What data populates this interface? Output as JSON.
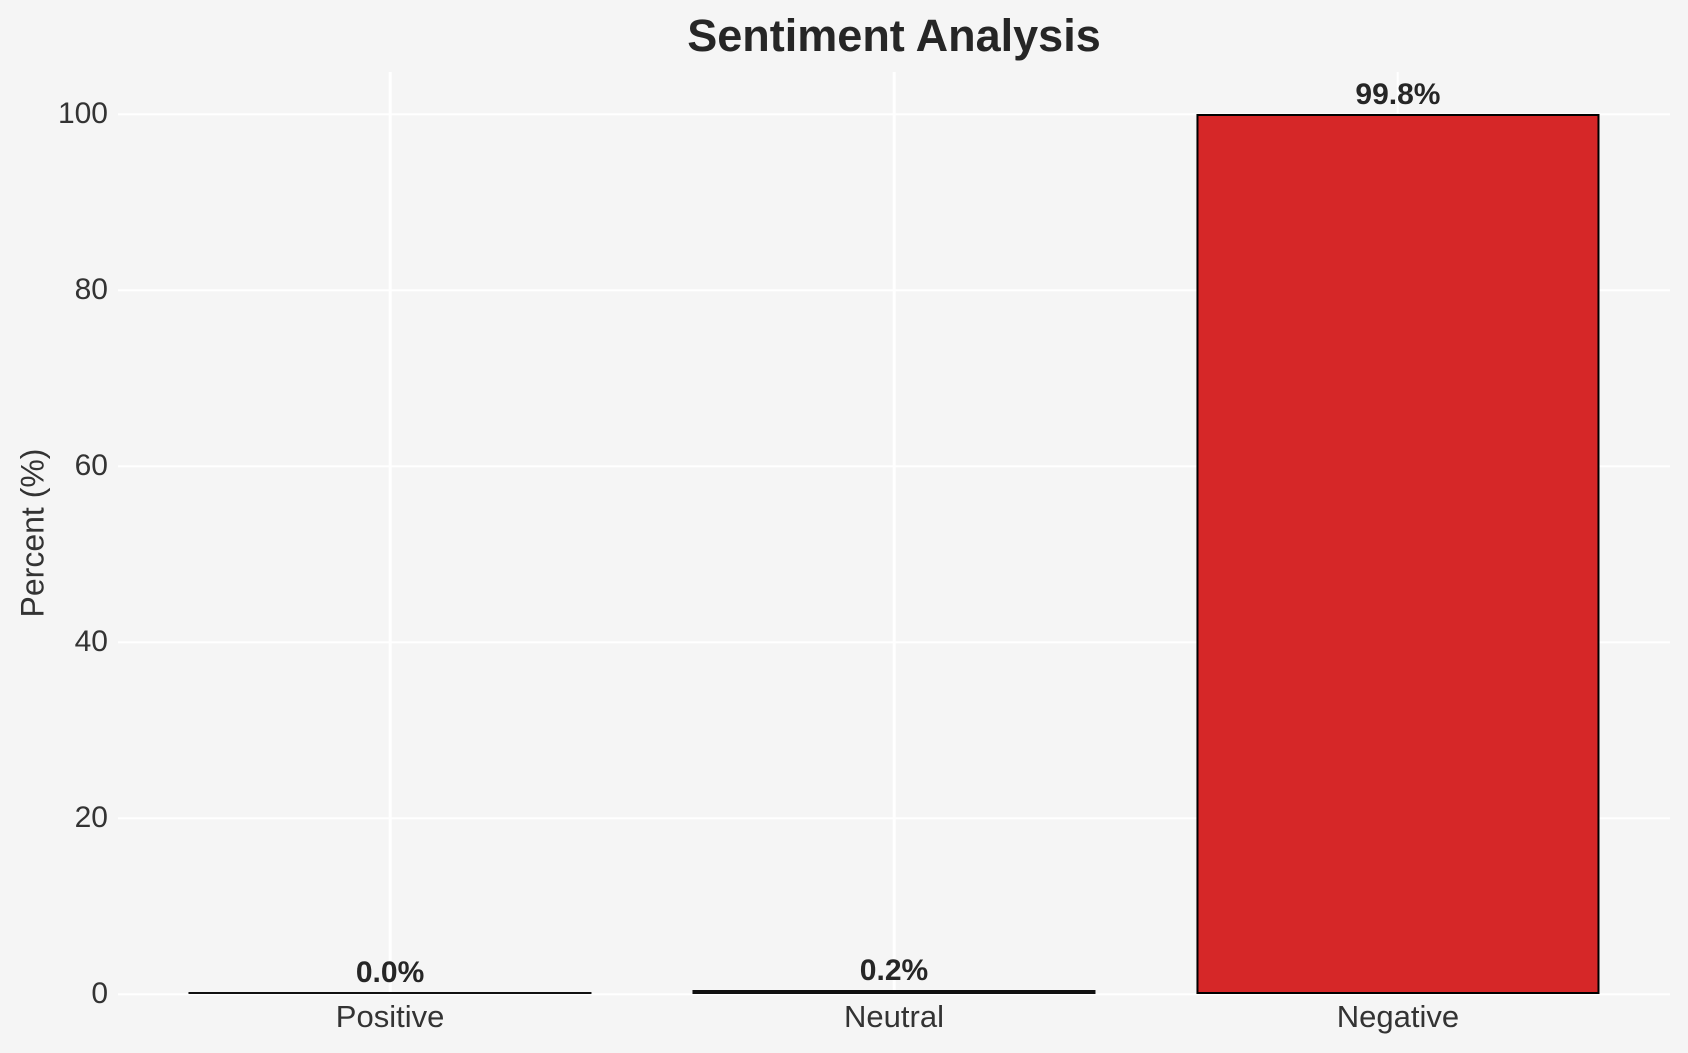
{
  "chart_data": {
    "type": "bar",
    "title": "Sentiment Analysis",
    "xlabel": "",
    "ylabel": "Percent (%)",
    "categories": [
      "Positive",
      "Neutral",
      "Negative"
    ],
    "values": [
      0.0,
      0.2,
      99.8
    ],
    "value_labels": [
      "0.0%",
      "0.2%",
      "99.8%"
    ],
    "yticks": [
      0,
      20,
      40,
      60,
      80,
      100
    ],
    "ylim": [
      0,
      104.8
    ],
    "grid": "both",
    "legend": "none",
    "colors": {
      "background": "#f5f5f5",
      "gridline": "#ffffff",
      "bar_fill": "#d62728",
      "bar_edge": "#000000",
      "title_text": "#262626",
      "tick_text": "#333333"
    }
  }
}
